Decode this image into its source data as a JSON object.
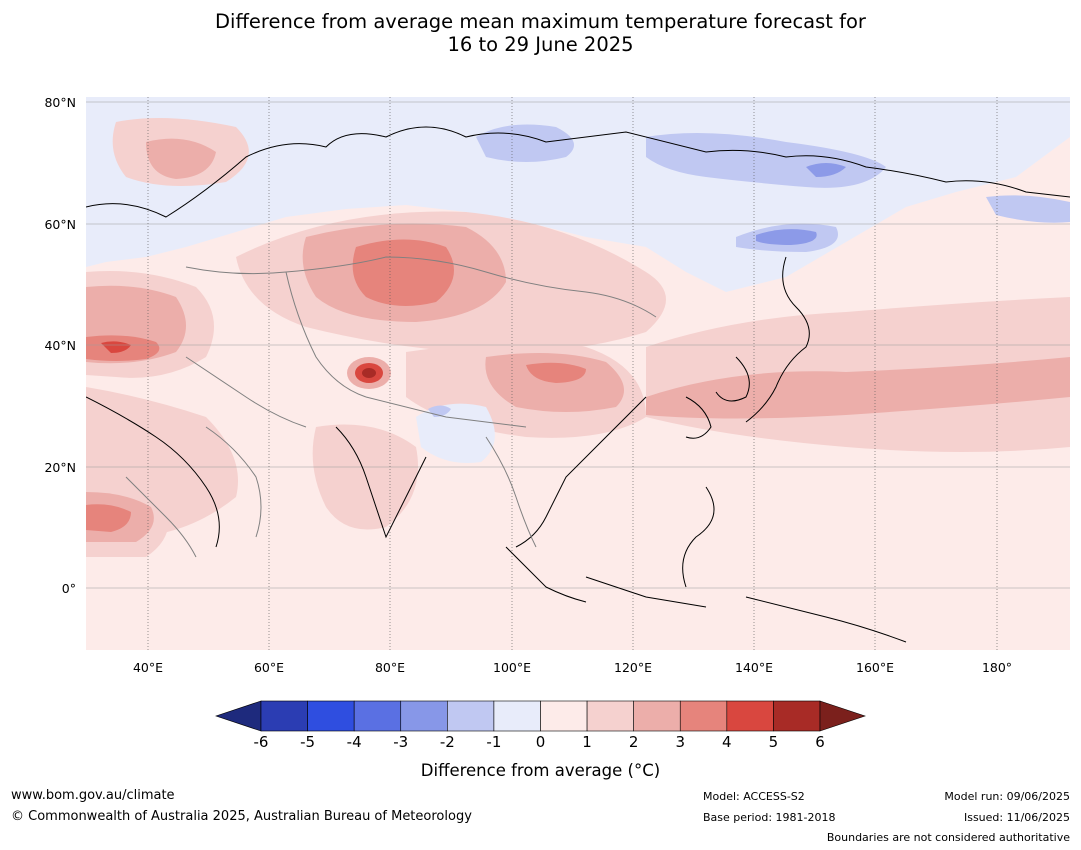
{
  "title": {
    "line1": "Difference from average mean maximum temperature forecast for",
    "line2": "16 to 29 June 2025"
  },
  "map": {
    "lat_labels": [
      "80°N",
      "60°N",
      "40°N",
      "20°N",
      "0°"
    ],
    "lon_labels": [
      "40°E",
      "60°E",
      "80°E",
      "100°E",
      "120°E",
      "140°E",
      "160°E",
      "180°"
    ],
    "colors": {
      "background_anomaly_0_1": "#fdebe9",
      "anomaly_1_2": "#f5d1cf",
      "anomaly_2_3": "#ecaeaa",
      "anomaly_3_4": "#e6847c",
      "anomaly_4_5": "#d9473f",
      "anomaly_neg1_0": "#e8ecfa",
      "anomaly_neg2_neg1": "#c0c8f2",
      "anomaly_neg3_neg2": "#8c9ae8"
    }
  },
  "colorbar": {
    "ticks": [
      "-6",
      "-5",
      "-4",
      "-3",
      "-2",
      "-1",
      "0",
      "1",
      "2",
      "3",
      "4",
      "5",
      "6"
    ],
    "colors": [
      "#1e2a7d",
      "#2b3db3",
      "#2f4ee0",
      "#5a70e3",
      "#8797e8",
      "#c0c8f2",
      "#e8ecfa",
      "#fdebe9",
      "#f5d1cf",
      "#ecaeaa",
      "#e6847c",
      "#d9473f",
      "#a82b26",
      "#7b201c"
    ],
    "title": "Difference from average (°C)"
  },
  "footer": {
    "url": "www.bom.gov.au/climate",
    "copyright": "© Commonwealth of Australia 2025, Australian Bureau of Meteorology",
    "model": "Model: ACCESS-S2",
    "base_period": "Base period: 1981-2018",
    "model_run": "Model run: 09/06/2025",
    "issued": "Issued: 11/06/2025",
    "disclaimer": "Boundaries are not considered authoritative"
  }
}
